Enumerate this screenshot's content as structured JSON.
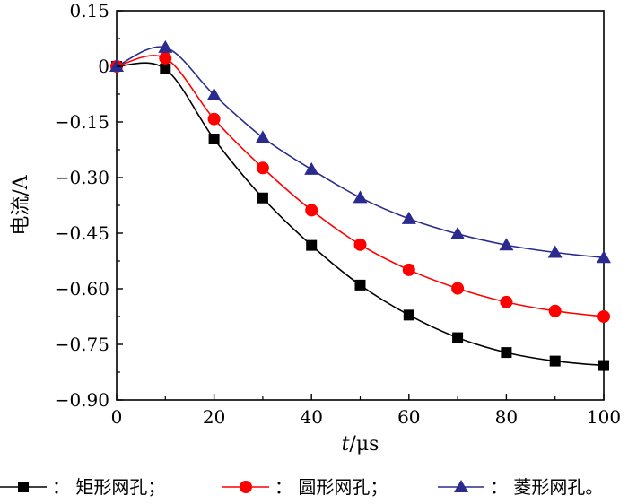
{
  "chart_data": {
    "type": "line",
    "title": "",
    "xlabel_italic": "t",
    "xlabel_unit": "/μs",
    "ylabel": "电流/A",
    "xlim": [
      0,
      100
    ],
    "ylim": [
      -0.9,
      0.15
    ],
    "x_ticks": [
      0,
      20,
      40,
      60,
      80,
      100
    ],
    "x_tick_labels": [
      "0",
      "20",
      "40",
      "60",
      "80",
      "100"
    ],
    "y_ticks": [
      0.15,
      0,
      -0.15,
      -0.3,
      -0.45,
      -0.6,
      -0.75,
      -0.9
    ],
    "y_tick_labels": [
      "0.15",
      "0",
      "−0.15",
      "−0.30",
      "−0.45",
      "−0.60",
      "−0.75",
      "−0.90"
    ],
    "grid": false,
    "legend_position": "bottom",
    "legend_separator": "；",
    "legend_colon": "：",
    "legend_end_mark": "。",
    "x": [
      0,
      10,
      20,
      30,
      40,
      50,
      60,
      70,
      80,
      90,
      100
    ],
    "series": [
      {
        "name": "矩形网孔",
        "color": "#000000",
        "marker": "square",
        "values": [
          0,
          -0.007,
          -0.196,
          -0.355,
          -0.483,
          -0.59,
          -0.671,
          -0.732,
          -0.772,
          -0.795,
          -0.807
        ]
      },
      {
        "name": "圆形网孔",
        "color": "#ff0000",
        "marker": "circle",
        "values": [
          0,
          0.022,
          -0.142,
          -0.274,
          -0.388,
          -0.481,
          -0.549,
          -0.599,
          -0.636,
          -0.66,
          -0.675
        ]
      },
      {
        "name": "菱形网孔",
        "color": "#2b2b8f",
        "marker": "triangle",
        "values": [
          0,
          0.051,
          -0.077,
          -0.192,
          -0.278,
          -0.354,
          -0.411,
          -0.452,
          -0.482,
          -0.502,
          -0.516
        ]
      }
    ]
  }
}
